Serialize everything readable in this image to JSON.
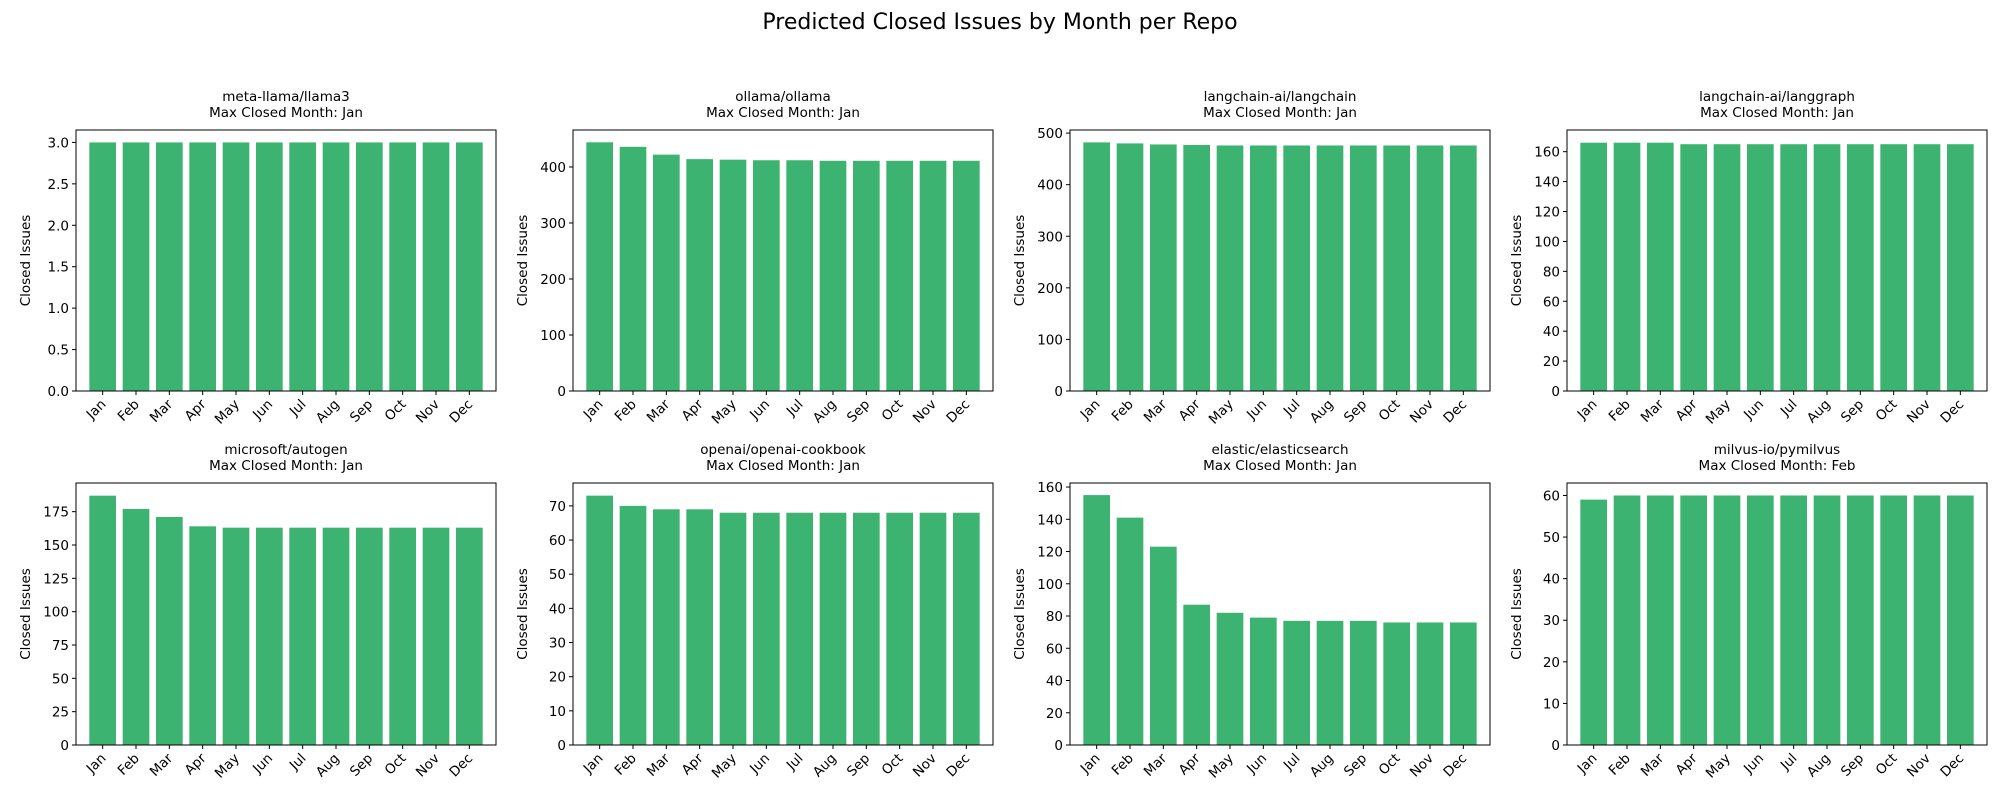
{
  "figure": {
    "title": "Predicted Closed Issues by Month per Repo"
  },
  "bar_color": "#3cb371",
  "chart_data": [
    {
      "type": "bar",
      "title": "meta-llama/llama3",
      "subtitle": "Max Closed Month: Jan",
      "ylabel": "Closed Issues",
      "categories": [
        "Jan",
        "Feb",
        "Mar",
        "Apr",
        "May",
        "Jun",
        "Jul",
        "Aug",
        "Sep",
        "Oct",
        "Nov",
        "Dec"
      ],
      "values": [
        3,
        3,
        3,
        3,
        3,
        3,
        3,
        3,
        3,
        3,
        3,
        3
      ],
      "ylim": [
        0,
        3.15
      ],
      "yticks": [
        "0.0",
        "0.5",
        "1.0",
        "1.5",
        "2.0",
        "2.5",
        "3.0"
      ],
      "ytick_values": [
        0,
        0.5,
        1,
        1.5,
        2,
        2.5,
        3
      ]
    },
    {
      "type": "bar",
      "title": "ollama/ollama",
      "subtitle": "Max Closed Month: Jan",
      "ylabel": "Closed Issues",
      "categories": [
        "Jan",
        "Feb",
        "Mar",
        "Apr",
        "May",
        "Jun",
        "Jul",
        "Aug",
        "Sep",
        "Oct",
        "Nov",
        "Dec"
      ],
      "values": [
        444,
        436,
        422,
        414,
        413,
        412,
        412,
        411,
        411,
        411,
        411,
        411
      ],
      "ylim": [
        0,
        466
      ],
      "yticks": [
        "0",
        "100",
        "200",
        "300",
        "400"
      ],
      "ytick_values": [
        0,
        100,
        200,
        300,
        400
      ]
    },
    {
      "type": "bar",
      "title": "langchain-ai/langchain",
      "subtitle": "Max Closed Month: Jan",
      "ylabel": "Closed Issues",
      "categories": [
        "Jan",
        "Feb",
        "Mar",
        "Apr",
        "May",
        "Jun",
        "Jul",
        "Aug",
        "Sep",
        "Oct",
        "Nov",
        "Dec"
      ],
      "values": [
        482,
        480,
        478,
        477,
        476,
        476,
        476,
        476,
        476,
        476,
        476,
        476
      ],
      "ylim": [
        0,
        506
      ],
      "yticks": [
        "0",
        "100",
        "200",
        "300",
        "400",
        "500"
      ],
      "ytick_values": [
        0,
        100,
        200,
        300,
        400,
        500
      ]
    },
    {
      "type": "bar",
      "title": "langchain-ai/langgraph",
      "subtitle": "Max Closed Month: Jan",
      "ylabel": "Closed Issues",
      "categories": [
        "Jan",
        "Feb",
        "Mar",
        "Apr",
        "May",
        "Jun",
        "Jul",
        "Aug",
        "Sep",
        "Oct",
        "Nov",
        "Dec"
      ],
      "values": [
        166,
        166,
        166,
        165,
        165,
        165,
        165,
        165,
        165,
        165,
        165,
        165
      ],
      "ylim": [
        0,
        174.5
      ],
      "yticks": [
        "0",
        "20",
        "40",
        "60",
        "80",
        "100",
        "120",
        "140",
        "160"
      ],
      "ytick_values": [
        0,
        20,
        40,
        60,
        80,
        100,
        120,
        140,
        160
      ]
    },
    {
      "type": "bar",
      "title": "microsoft/autogen",
      "subtitle": "Max Closed Month: Jan",
      "ylabel": "Closed Issues",
      "categories": [
        "Jan",
        "Feb",
        "Mar",
        "Apr",
        "May",
        "Jun",
        "Jul",
        "Aug",
        "Sep",
        "Oct",
        "Nov",
        "Dec"
      ],
      "values": [
        187,
        177,
        171,
        164,
        163,
        163,
        163,
        163,
        163,
        163,
        163,
        163
      ],
      "ylim": [
        0,
        196.5
      ],
      "yticks": [
        "0",
        "25",
        "50",
        "75",
        "100",
        "125",
        "150",
        "175"
      ],
      "ytick_values": [
        0,
        25,
        50,
        75,
        100,
        125,
        150,
        175
      ]
    },
    {
      "type": "bar",
      "title": "openai/openai-cookbook",
      "subtitle": "Max Closed Month: Jan",
      "ylabel": "Closed Issues",
      "categories": [
        "Jan",
        "Feb",
        "Mar",
        "Apr",
        "May",
        "Jun",
        "Jul",
        "Aug",
        "Sep",
        "Oct",
        "Nov",
        "Dec"
      ],
      "values": [
        73,
        70,
        69,
        69,
        68,
        68,
        68,
        68,
        68,
        68,
        68,
        68
      ],
      "ylim": [
        0,
        76.7
      ],
      "yticks": [
        "0",
        "10",
        "20",
        "30",
        "40",
        "50",
        "60",
        "70"
      ],
      "ytick_values": [
        0,
        10,
        20,
        30,
        40,
        50,
        60,
        70
      ]
    },
    {
      "type": "bar",
      "title": "elastic/elasticsearch",
      "subtitle": "Max Closed Month: Jan",
      "ylabel": "Closed Issues",
      "categories": [
        "Jan",
        "Feb",
        "Mar",
        "Apr",
        "May",
        "Jun",
        "Jul",
        "Aug",
        "Sep",
        "Oct",
        "Nov",
        "Dec"
      ],
      "values": [
        155,
        141,
        123,
        87,
        82,
        79,
        77,
        77,
        77,
        76,
        76,
        76
      ],
      "ylim": [
        0,
        162.5
      ],
      "yticks": [
        "0",
        "20",
        "40",
        "60",
        "80",
        "100",
        "120",
        "140",
        "160"
      ],
      "ytick_values": [
        0,
        20,
        40,
        60,
        80,
        100,
        120,
        140,
        160
      ]
    },
    {
      "type": "bar",
      "title": "milvus-io/pymilvus",
      "subtitle": "Max Closed Month: Feb",
      "ylabel": "Closed Issues",
      "categories": [
        "Jan",
        "Feb",
        "Mar",
        "Apr",
        "May",
        "Jun",
        "Jul",
        "Aug",
        "Sep",
        "Oct",
        "Nov",
        "Dec"
      ],
      "values": [
        59,
        60,
        60,
        60,
        60,
        60,
        60,
        60,
        60,
        60,
        60,
        60
      ],
      "ylim": [
        0,
        63
      ],
      "yticks": [
        "0",
        "10",
        "20",
        "30",
        "40",
        "50",
        "60"
      ],
      "ytick_values": [
        0,
        10,
        20,
        30,
        40,
        50,
        60
      ]
    }
  ]
}
